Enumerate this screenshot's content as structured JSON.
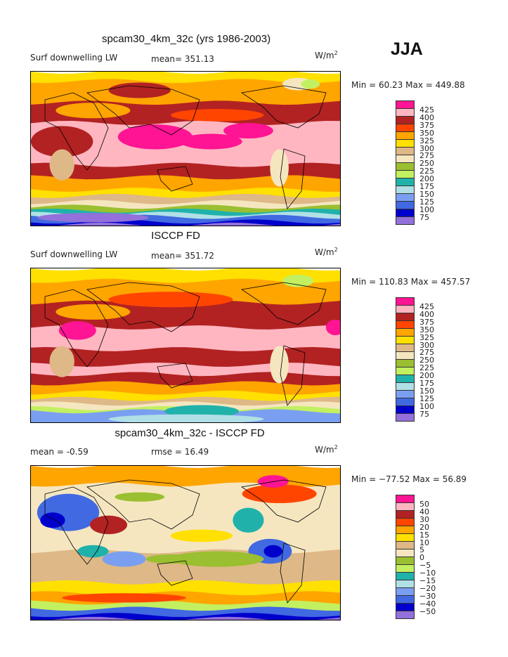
{
  "season": "JJA",
  "palette": [
    "#ff1493",
    "#ffb6c1",
    "#b22222",
    "#ff4500",
    "#ffa500",
    "#ffe000",
    "#deb887",
    "#f5e6c0",
    "#9abf30",
    "#c2f060",
    "#20b2aa",
    "#b0e0e6",
    "#7b9ff0",
    "#4169e1",
    "#0000cd",
    "#9370db"
  ],
  "panels": [
    {
      "title": "spcam30_4km_32c (yrs 1986-2003)",
      "variable": "Surf downwelling LW",
      "stat1": "mean= 351.13",
      "stat2": "",
      "units": "W/m",
      "units_exp": "2",
      "minmax": "Min =   60.23 Max = 449.88",
      "levels": [
        "425",
        "400",
        "375",
        "350",
        "325",
        "300",
        "275",
        "250",
        "225",
        "200",
        "175",
        "150",
        "125",
        "100",
        "75"
      ]
    },
    {
      "title": "ISCCP FD",
      "variable": "Surf downwelling LW",
      "stat1": "mean= 351.72",
      "stat2": "",
      "units": "W/m",
      "units_exp": "2",
      "minmax": "Min = 110.83 Max = 457.57",
      "levels": [
        "425",
        "400",
        "375",
        "350",
        "325",
        "300",
        "275",
        "250",
        "225",
        "200",
        "175",
        "150",
        "125",
        "100",
        "75"
      ]
    },
    {
      "title": "spcam30_4km_32c - ISCCP FD",
      "variable": "mean =   -0.59",
      "stat1": "",
      "stat2": "rmse =   16.49",
      "units": "W/m",
      "units_exp": "2",
      "minmax": "Min = −77.52 Max =   56.89",
      "levels": [
        "50",
        "40",
        "30",
        "20",
        "15",
        "10",
        "5",
        "0",
        "−5",
        "−10",
        "−15",
        "−20",
        "−30",
        "−40",
        "−50"
      ]
    }
  ]
}
